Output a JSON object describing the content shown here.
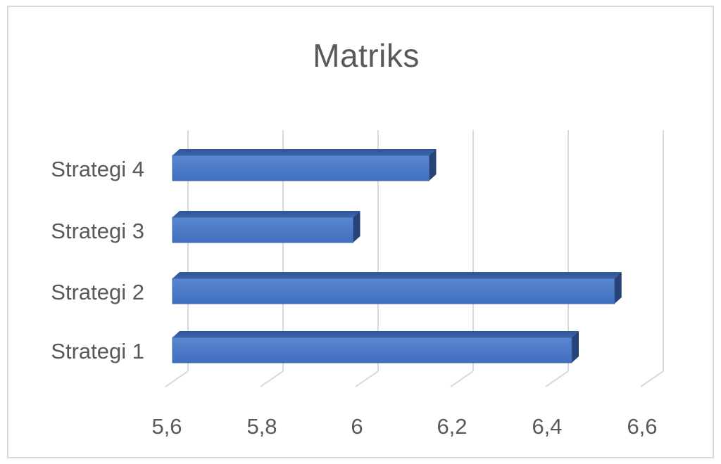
{
  "chart_data": {
    "type": "bar",
    "orientation": "horizontal",
    "style": "3d-clustered-bar",
    "title": "Matriks",
    "xlabel": "",
    "ylabel": "",
    "categories": [
      "Strategi 1",
      "Strategi 2",
      "Strategi 3",
      "Strategi 4"
    ],
    "values": [
      6.44,
      6.53,
      5.98,
      6.14
    ],
    "xlim": [
      5.6,
      6.6
    ],
    "ticks": [
      5.6,
      5.8,
      6.0,
      6.2,
      6.4,
      6.6
    ],
    "tick_labels": [
      "5,6",
      "5,8",
      "6",
      "6,2",
      "6,4",
      "6,6"
    ],
    "gridlines": true,
    "legend": false,
    "bar_color": "#4472C4"
  }
}
